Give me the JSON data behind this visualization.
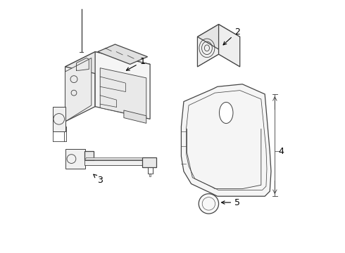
{
  "background_color": "#ffffff",
  "line_color": "#444444",
  "label_color": "#000000",
  "components": {
    "c1": {
      "label": "1",
      "lpos": [
        0.38,
        0.76
      ],
      "aend": [
        0.305,
        0.72
      ]
    },
    "c2": {
      "label": "2",
      "lpos": [
        0.76,
        0.88
      ],
      "aend": [
        0.695,
        0.82
      ]
    },
    "c3": {
      "label": "3",
      "lpos": [
        0.21,
        0.285
      ],
      "aend": [
        0.175,
        0.315
      ]
    },
    "c4": {
      "label": "4",
      "lpos": [
        0.935,
        0.4
      ],
      "aend": [
        0.915,
        0.4
      ]
    },
    "c5": {
      "label": "5",
      "lpos": [
        0.76,
        0.195
      ],
      "aend": [
        0.685,
        0.195
      ]
    }
  }
}
